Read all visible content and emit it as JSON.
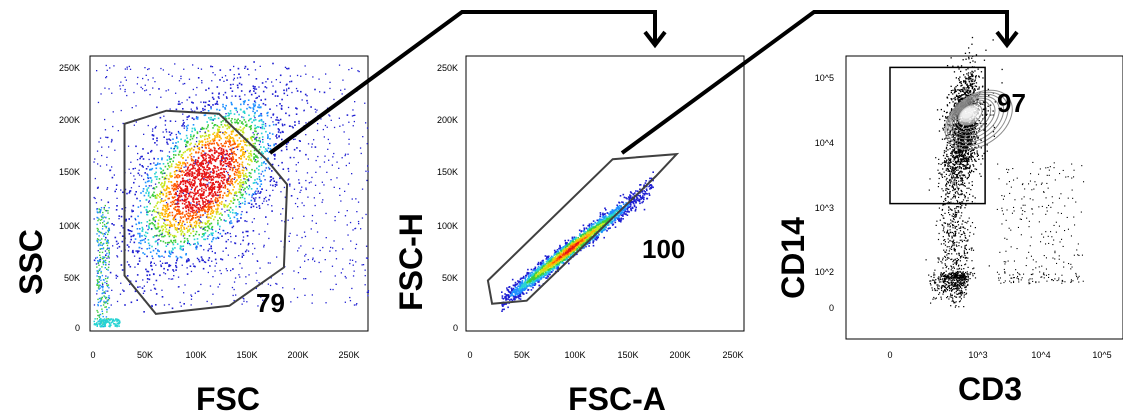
{
  "chart_data": [
    {
      "type": "scatter",
      "title": "",
      "xlabel": "FSC",
      "ylabel": "SSC",
      "x_ticks": [
        "0",
        "50K",
        "100K",
        "150K",
        "200K",
        "250K"
      ],
      "y_ticks": [
        "0",
        "50K",
        "100K",
        "150K",
        "200K",
        "250K"
      ],
      "xlim": [
        0,
        262144
      ],
      "ylim": [
        0,
        262144
      ],
      "color_scale": "density (blue to red)",
      "gate": {
        "label": "79",
        "vertices": [
          [
            60000,
            12000
          ],
          [
            130000,
            20000
          ],
          [
            182000,
            58000
          ],
          [
            185000,
            140000
          ],
          [
            165000,
            165000
          ],
          [
            120000,
            210000
          ],
          [
            70000,
            213000
          ],
          [
            30000,
            200000
          ],
          [
            30000,
            50000
          ]
        ]
      },
      "population": {
        "center": [
          105000,
          145000
        ],
        "spread": [
          38000,
          42000
        ]
      }
    },
    {
      "type": "scatter",
      "title": "",
      "xlabel": "FSC-A",
      "ylabel": "FSC-H",
      "x_ticks": [
        "0",
        "50K",
        "100K",
        "150K",
        "200K",
        "250K"
      ],
      "y_ticks": [
        "0",
        "50K",
        "100K",
        "150K",
        "200K",
        "250K"
      ],
      "xlim": [
        0,
        262144
      ],
      "ylim": [
        0,
        262144
      ],
      "color_scale": "density (blue to red)",
      "gate": {
        "label": "100",
        "vertices": [
          [
            22000,
            22000
          ],
          [
            55000,
            25000
          ],
          [
            178000,
            148000
          ],
          [
            198000,
            170000
          ],
          [
            137000,
            165000
          ],
          [
            18000,
            45000
          ]
        ]
      },
      "population": {
        "slope": 0.8,
        "x_range": [
          30000,
          175000
        ]
      }
    },
    {
      "type": "scatter",
      "title": "",
      "xlabel": "CD3",
      "ylabel": "CD14",
      "x_ticks": [
        "0",
        "10^3",
        "10^4",
        "10^5"
      ],
      "y_ticks": [
        "0",
        "10^2",
        "10^3",
        "10^4",
        "10^5"
      ],
      "scale": "logicle",
      "style": "dot plot with contour overlay",
      "gate": {
        "label": "97",
        "vertices": [
          [
            0,
            1100
          ],
          [
            1300,
            1100
          ],
          [
            1300,
            140000
          ],
          [
            0,
            140000
          ]
        ]
      }
    }
  ],
  "connectors": [
    {
      "from_panel": 1,
      "to_panel": 2
    },
    {
      "from_panel": 2,
      "to_panel": 3
    }
  ],
  "colors": {
    "density": [
      "#1e1ed2",
      "#1e90ff",
      "#27d3d3",
      "#3ccc3c",
      "#c8e61e",
      "#ffb400",
      "#ff5a00",
      "#e61414"
    ],
    "gate_line": "#404040",
    "connector": "#000000",
    "dots": "#000000"
  }
}
